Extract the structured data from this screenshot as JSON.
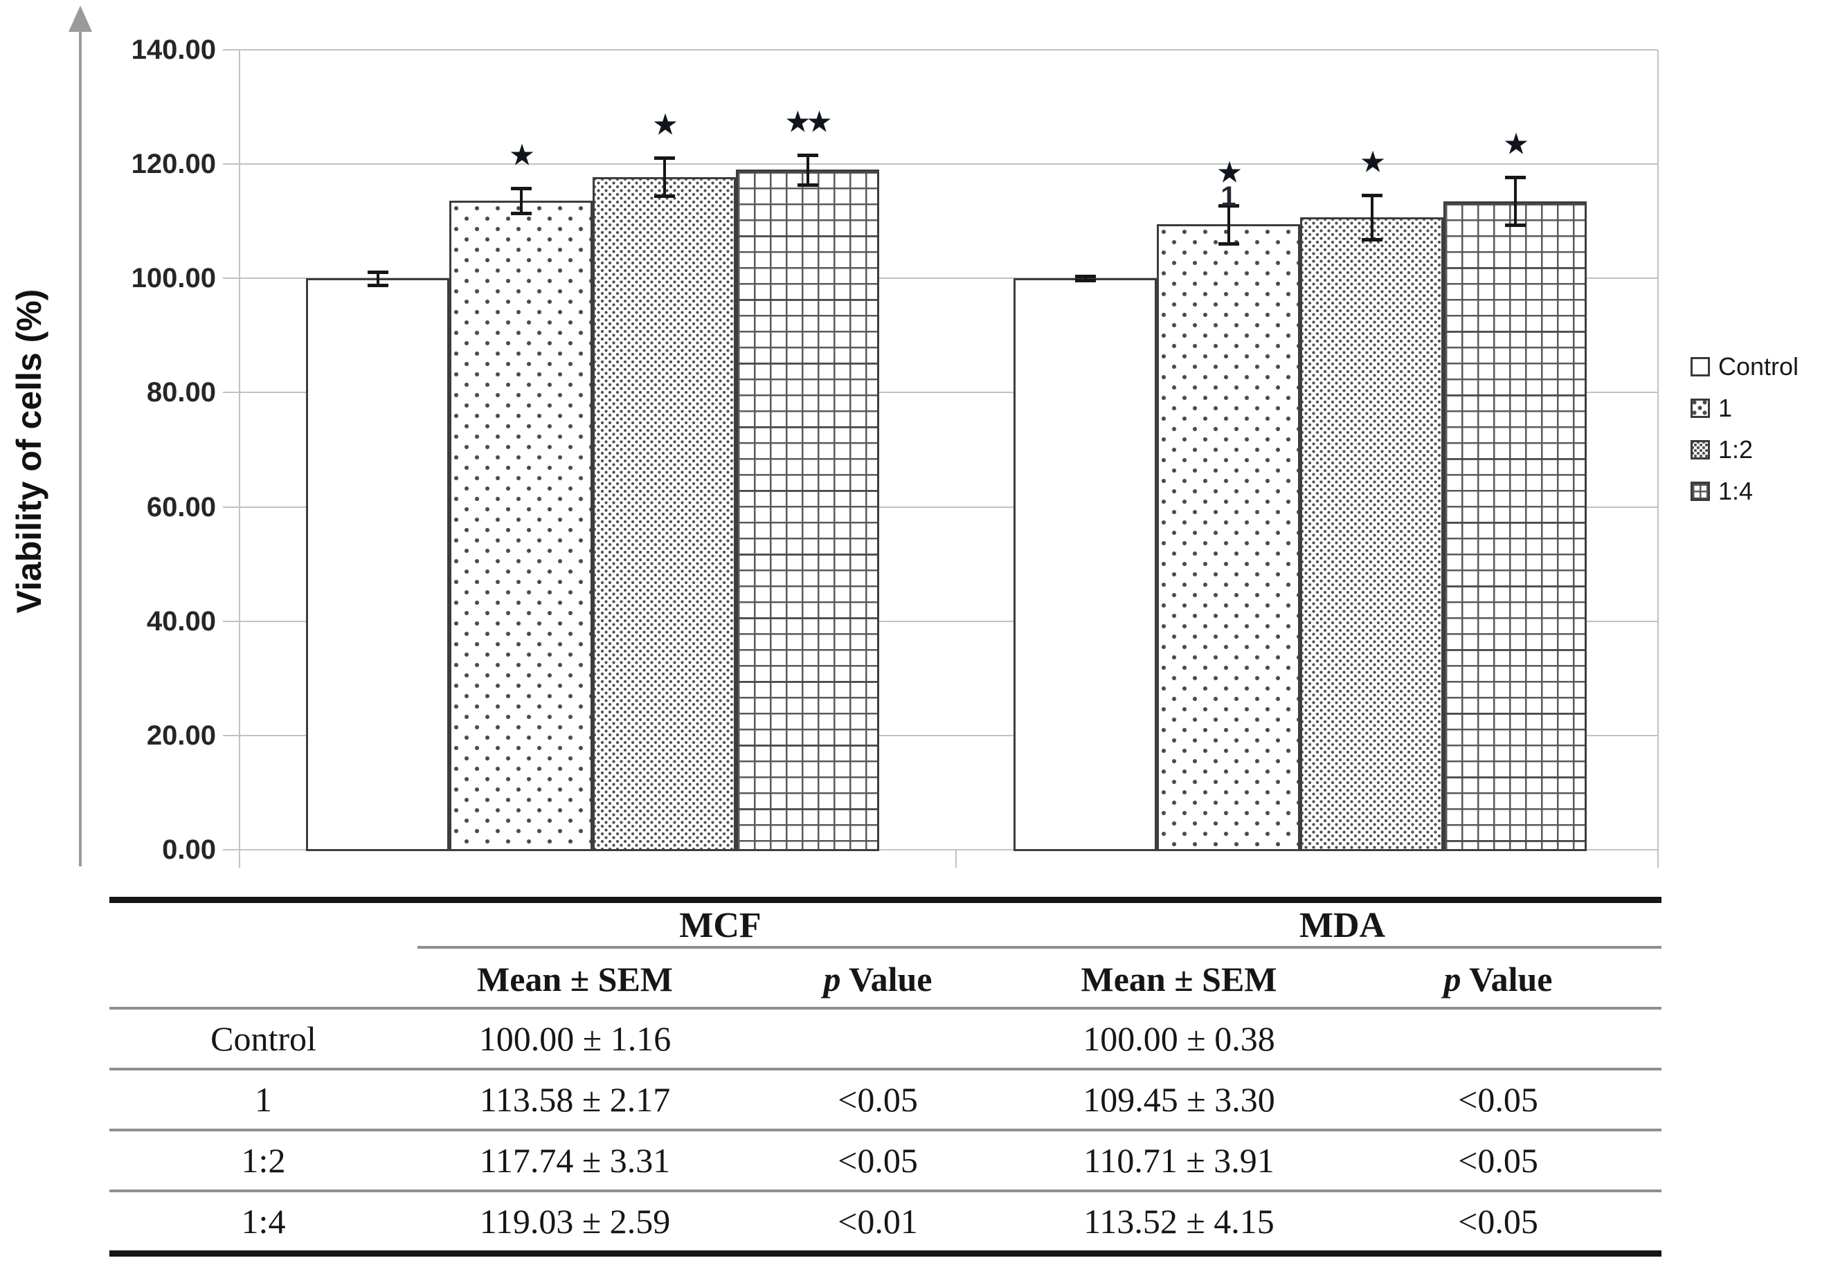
{
  "chart_data": {
    "type": "bar",
    "title": "",
    "xlabel": "",
    "ylabel": "Viability of cells (%)",
    "ylim": [
      0,
      140
    ],
    "ytick_step": 20,
    "ytick_labels": [
      "0.00",
      "20.00",
      "40.00",
      "60.00",
      "80.00",
      "100.00",
      "120.00",
      "140.00"
    ],
    "grid": true,
    "legend_position": "right",
    "series": [
      {
        "name": "Control",
        "pattern": "plain"
      },
      {
        "name": "1",
        "pattern": "dots-light"
      },
      {
        "name": "1:2",
        "pattern": "dots-dense"
      },
      {
        "name": "1:4",
        "pattern": "grid"
      }
    ],
    "groups": [
      {
        "name": "MCF",
        "bars": [
          {
            "series": "Control",
            "mean": 100.0,
            "sem": 1.16,
            "significance": ""
          },
          {
            "series": "1",
            "mean": 113.58,
            "sem": 2.17,
            "significance": "★"
          },
          {
            "series": "1:2",
            "mean": 117.74,
            "sem": 3.31,
            "significance": "★"
          },
          {
            "series": "1:4",
            "mean": 119.03,
            "sem": 2.59,
            "significance": "★★"
          }
        ]
      },
      {
        "name": "MDA",
        "bars": [
          {
            "series": "Control",
            "mean": 100.0,
            "sem": 0.38,
            "significance": ""
          },
          {
            "series": "1",
            "mean": 109.45,
            "sem": 3.3,
            "significance": "★",
            "extra_label": "1"
          },
          {
            "series": "1:2",
            "mean": 110.71,
            "sem": 3.91,
            "significance": "★"
          },
          {
            "series": "1:4",
            "mean": 113.52,
            "sem": 4.15,
            "significance": "★"
          }
        ]
      }
    ]
  },
  "table": {
    "group_headers": [
      "MCF",
      "MDA"
    ],
    "sub_header": {
      "mean": "Mean ± SEM",
      "p_italic": "p",
      "p_rest": " Value"
    },
    "rows": [
      {
        "label": "Control",
        "cells": [
          "100.00 ± 1.16",
          "",
          "100.00 ± 0.38",
          ""
        ]
      },
      {
        "label": "1",
        "cells": [
          "113.58 ± 2.17",
          "<0.05",
          "109.45 ± 3.30",
          "<0.05"
        ]
      },
      {
        "label": "1:2",
        "cells": [
          "117.74 ± 3.31",
          "<0.05",
          "110.71 ± 3.91",
          "<0.05"
        ]
      },
      {
        "label": "1:4",
        "cells": [
          "119.03 ± 2.59",
          "<0.01",
          "113.52 ± 4.15",
          "<0.05"
        ]
      }
    ]
  },
  "colors": {
    "grid_line": "#c2c2c2",
    "bar_border": "#3d3d3d",
    "error_bar": "#161616",
    "text": "#1f1f1f",
    "rule_gray": "#8f8f8f",
    "rule_black": "#161616",
    "arrow": "#9a9a9a"
  }
}
